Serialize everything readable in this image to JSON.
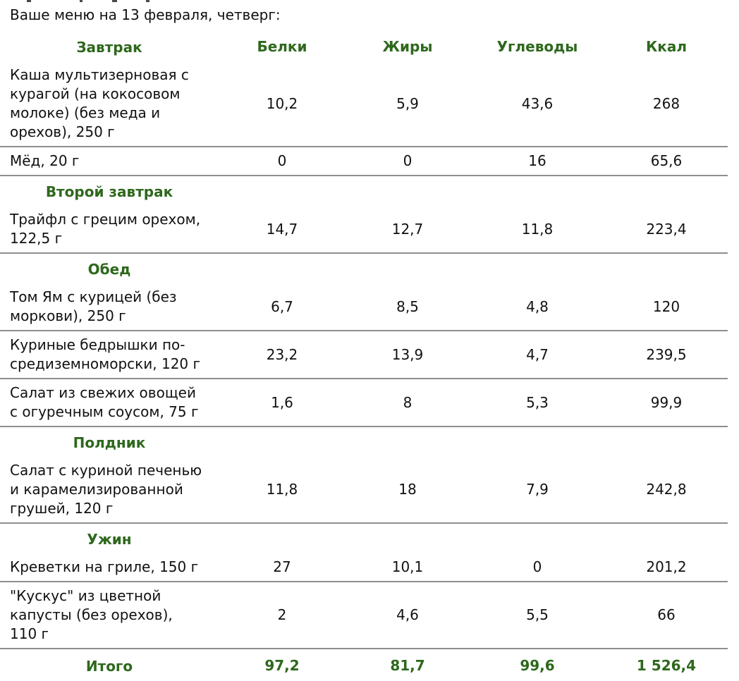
{
  "page": {
    "title": "Ваше меню на 13 февраля, четверг:"
  },
  "colors": {
    "accent_green": "#2E681C",
    "divider_gray": "#8E8E8E",
    "text_black": "#111111"
  },
  "table": {
    "columns": [
      "Белки",
      "Жиры",
      "Углеводы",
      "Ккал"
    ],
    "sections": [
      {
        "name": "Завтрак",
        "items": [
          {
            "name": "Каша мультизерновая с курагой (на кокосовом молоке) (без меда и орехов), 250 г",
            "values": [
              "10,2",
              "5,9",
              "43,6",
              "268"
            ]
          },
          {
            "name": "Мёд, 20 г",
            "values": [
              "0",
              "0",
              "16",
              "65,6"
            ]
          }
        ]
      },
      {
        "name": "Второй завтрак",
        "items": [
          {
            "name": "Трайфл с грецим орехом, 122,5 г",
            "values": [
              "14,7",
              "12,7",
              "11,8",
              "223,4"
            ]
          }
        ]
      },
      {
        "name": "Обед",
        "items": [
          {
            "name": "Том Ям с курицей (без моркови), 250 г",
            "values": [
              "6,7",
              "8,5",
              "4,8",
              "120"
            ]
          },
          {
            "name": "Куриные бедрышки по-средиземноморски, 120 г",
            "values": [
              "23,2",
              "13,9",
              "4,7",
              "239,5"
            ]
          },
          {
            "name": "Салат из свежих овощей с огуречным соусом, 75 г",
            "values": [
              "1,6",
              "8",
              "5,3",
              "99,9"
            ]
          }
        ]
      },
      {
        "name": "Полдник",
        "items": [
          {
            "name": "Салат с куриной печенью и карамелизированной грушей, 120 г",
            "values": [
              "11,8",
              "18",
              "7,9",
              "242,8"
            ]
          }
        ]
      },
      {
        "name": "Ужин",
        "items": [
          {
            "name": "Креветки на гриле, 150 г",
            "values": [
              "27",
              "10,1",
              "0",
              "201,2"
            ]
          },
          {
            "name": "\"Кускус\" из цветной капусты (без орехов), 110 г",
            "values": [
              "2",
              "4,6",
              "5,5",
              "66"
            ]
          }
        ]
      }
    ],
    "total": {
      "label": "Итого",
      "values": [
        "97,2",
        "81,7",
        "99,6",
        "1 526,4"
      ]
    }
  }
}
